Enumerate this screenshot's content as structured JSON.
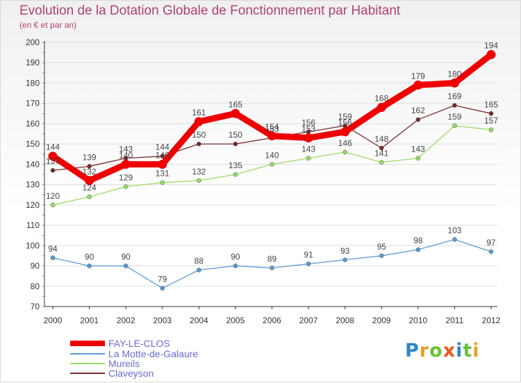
{
  "title": "Evolution de la Dotation Globale de Fonctionnement par Habitant",
  "subtitle": "(en € et par an)",
  "brand": {
    "text": "Proxiti",
    "letters": [
      "P",
      "r",
      "o",
      "x",
      "i",
      "t",
      "i"
    ],
    "colors": [
      "#2e86c8",
      "#e8a020",
      "#6cbf3a",
      "#e85a20",
      "#2e86c8",
      "#6cbf3a",
      "#e8a020"
    ]
  },
  "chart_data": {
    "type": "line",
    "title": "Evolution de la Dotation Globale de Fonctionnement par Habitant",
    "ylabel": "(en € et par an)",
    "xlabel": "",
    "x": [
      2000,
      2001,
      2002,
      2003,
      2004,
      2005,
      2006,
      2007,
      2008,
      2009,
      2010,
      2011,
      2012
    ],
    "ylim": [
      70,
      200
    ],
    "yticks": [
      70,
      80,
      90,
      100,
      110,
      120,
      130,
      140,
      150,
      160,
      170,
      180,
      190,
      200
    ],
    "grid": true,
    "legend_position": "bottom-left",
    "series": [
      {
        "name": "FAY-LE-CLOS",
        "color": "#ee0000",
        "values": [
          144,
          132,
          140,
          140,
          161,
          165,
          154,
          153,
          156,
          168,
          179,
          180,
          194
        ],
        "labels": [
          "144",
          "132",
          "140",
          "140",
          "161",
          "165",
          "154",
          "153",
          "156",
          "168",
          "179",
          "180",
          "194"
        ]
      },
      {
        "name": "La Motte-de-Galaure",
        "color": "#5b9bd5",
        "values": [
          94,
          90,
          90,
          79,
          88,
          90,
          89,
          91,
          93,
          95,
          98,
          103,
          97
        ],
        "labels": [
          "94",
          "90",
          "90",
          "79",
          "88",
          "90",
          "89",
          "91",
          "93",
          "95",
          "98",
          "103",
          "97"
        ]
      },
      {
        "name": "Mureils",
        "color": "#99dd66",
        "values": [
          120,
          124,
          129,
          131,
          132,
          135,
          140,
          143,
          146,
          141,
          143,
          159,
          157
        ],
        "labels": [
          "120",
          "124",
          "129",
          "131",
          "132",
          "135",
          "140",
          "143",
          "146",
          "141",
          "143",
          "159",
          "157"
        ]
      },
      {
        "name": "Claveyson",
        "color": "#7a2a2a",
        "values": [
          137,
          139,
          143,
          144,
          150,
          150,
          153,
          156,
          159,
          148,
          162,
          169,
          165
        ],
        "labels": [
          "137",
          "139",
          "143",
          "144",
          "150",
          "150",
          "153",
          "156",
          "159",
          "148",
          "162",
          "169",
          "165"
        ]
      }
    ]
  }
}
